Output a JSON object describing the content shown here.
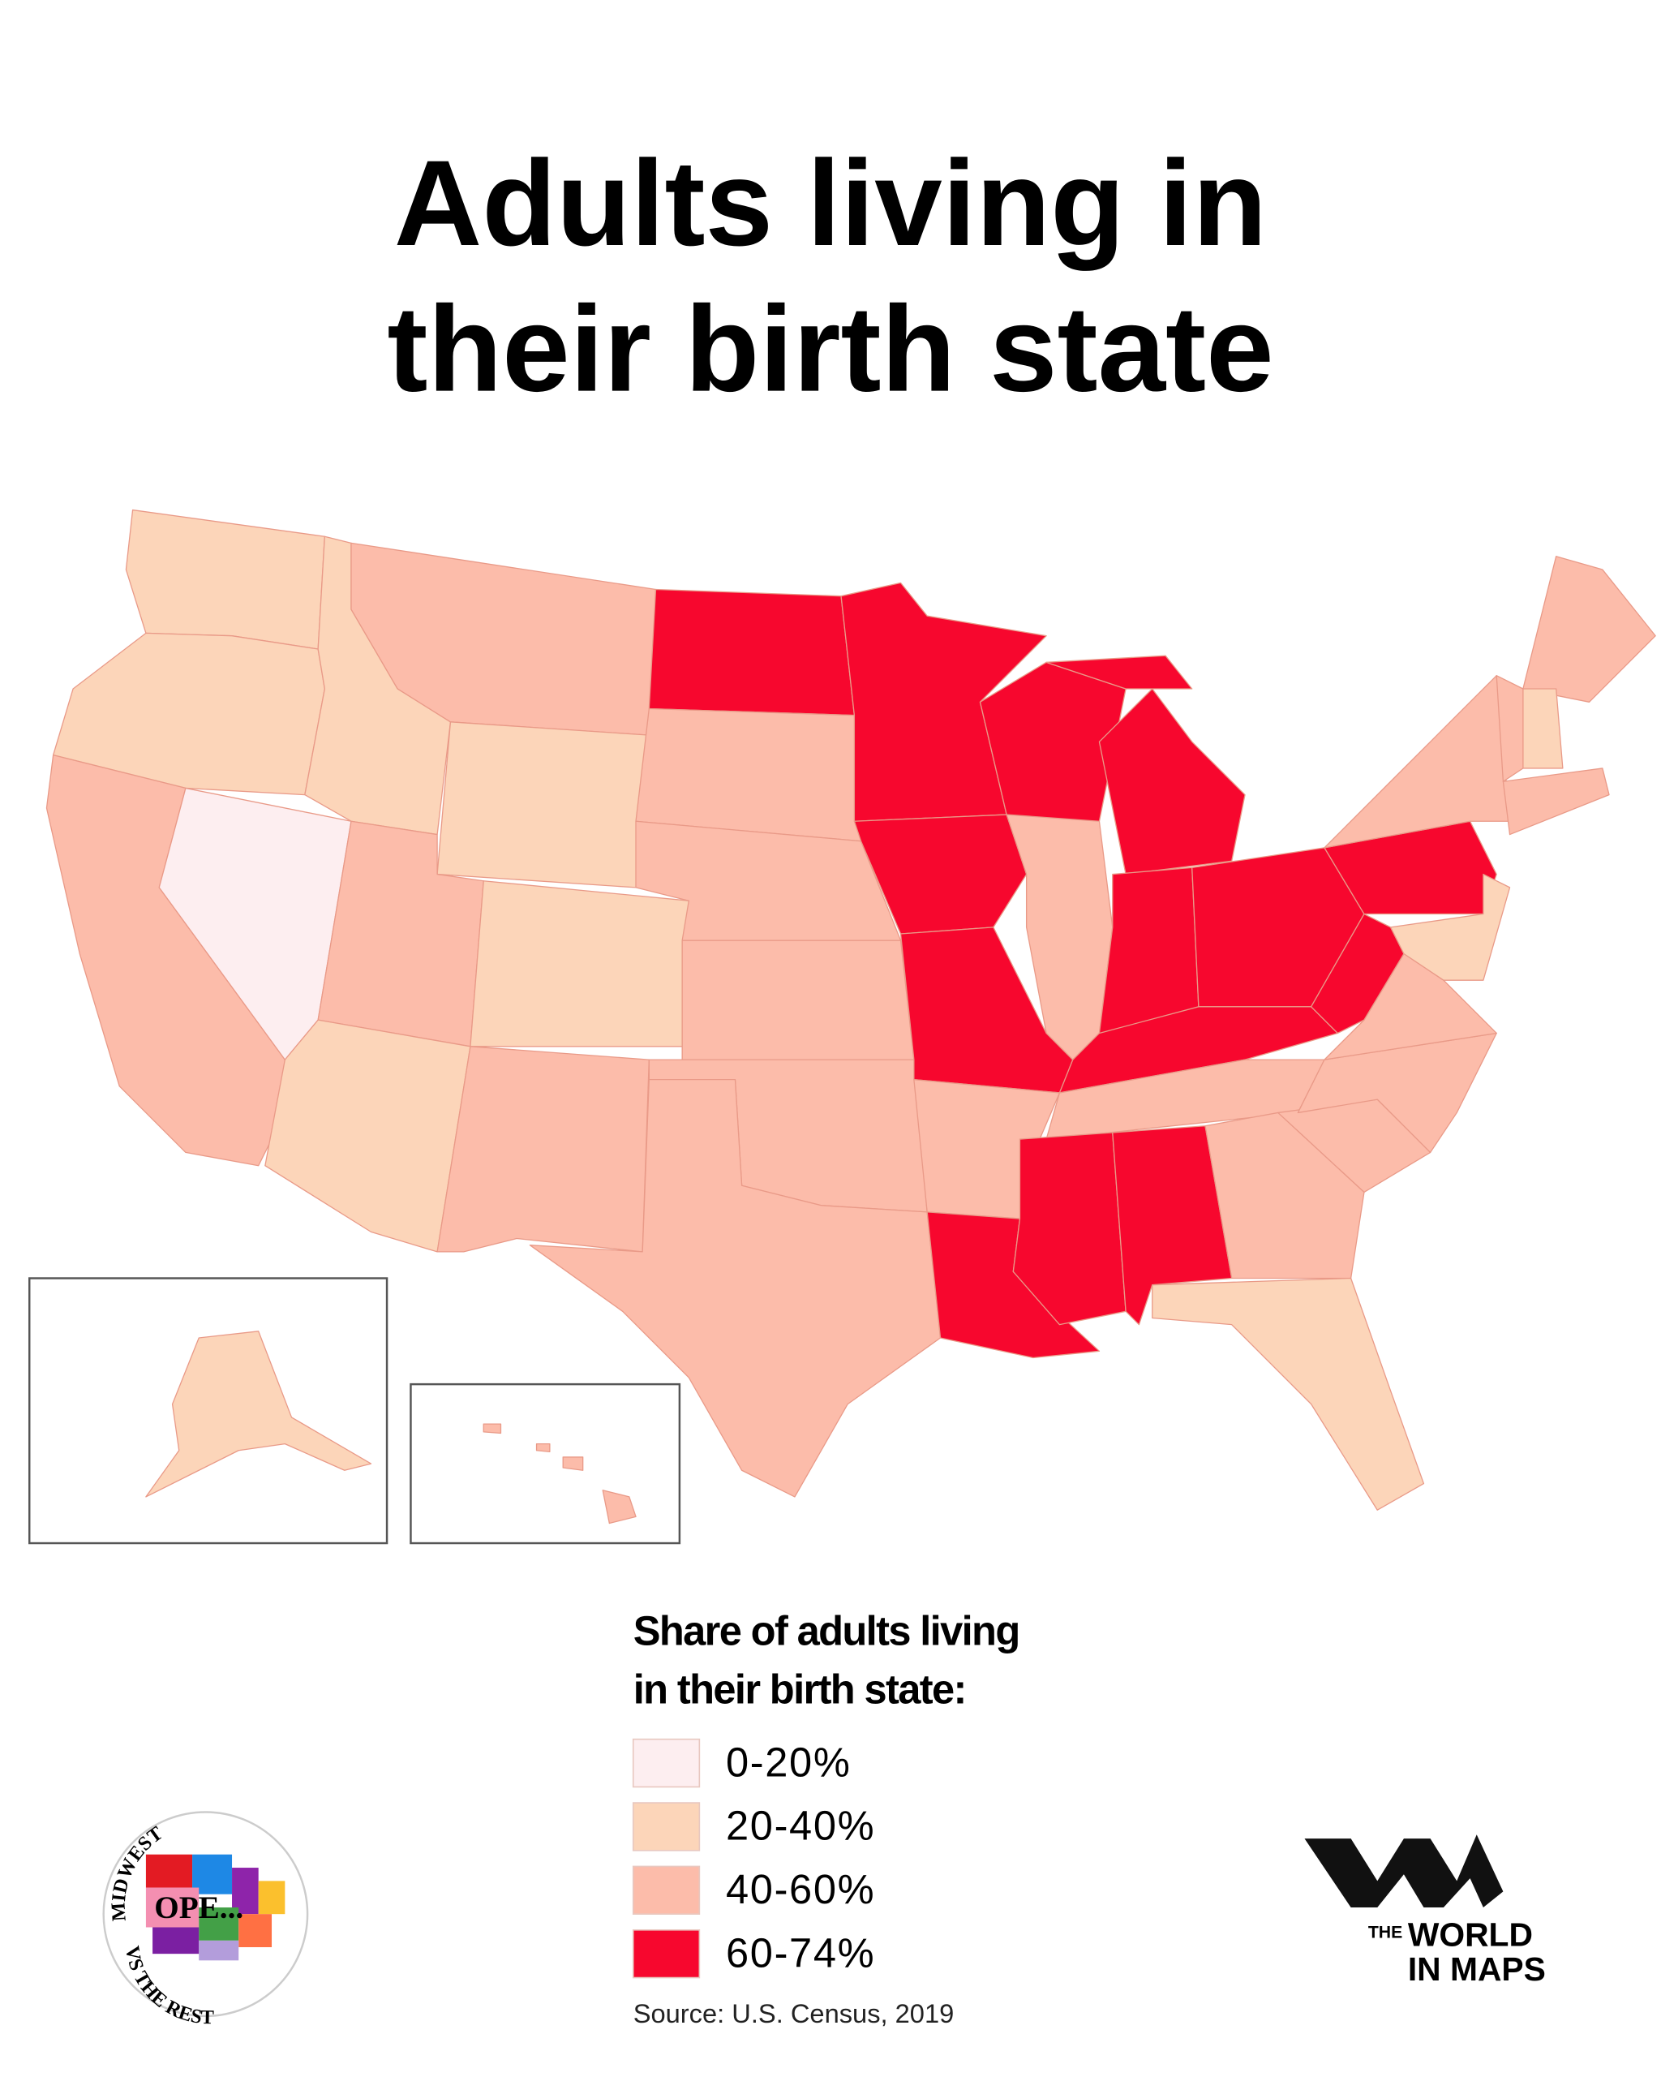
{
  "title_lines": [
    "Adults living in",
    "their birth state"
  ],
  "legend": {
    "title_lines": [
      "Share of adults living",
      "in their birth state:"
    ],
    "items": [
      {
        "label": "0-20%",
        "color": "#fdeef0"
      },
      {
        "label": "20-40%",
        "color": "#fcd5b9"
      },
      {
        "label": "40-60%",
        "color": "#fcbcaa"
      },
      {
        "label": "60-74%",
        "color": "#f7072e"
      }
    ]
  },
  "source": "Source: U.S. Census, 2019",
  "logos": {
    "midwest": {
      "top": "MIDWEST",
      "center": "OPE...",
      "bottom": "VS THE REST"
    },
    "world_in_maps": {
      "the": "THE",
      "line1": "WORLD",
      "line2": "IN MAPS"
    }
  }
}
